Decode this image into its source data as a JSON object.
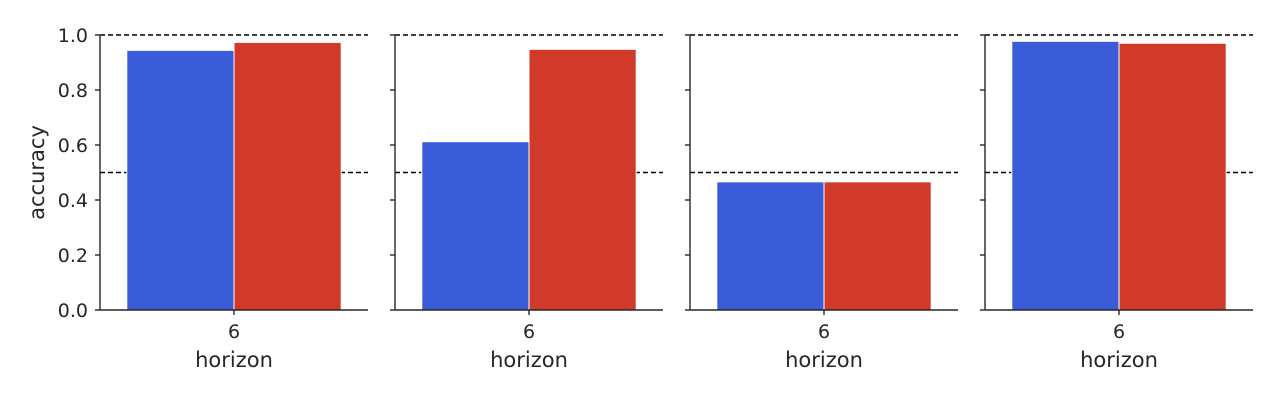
{
  "chart_data": [
    {
      "type": "bar",
      "categories": [
        "6"
      ],
      "series": [
        {
          "values": [
            0.944
          ],
          "color": "#3a5cd8"
        },
        {
          "values": [
            0.973
          ],
          "color": "#d13a29"
        }
      ],
      "xlabel": "horizon",
      "ylabel": "accuracy",
      "ylim": [
        0,
        1.0
      ],
      "yticks": [
        "0.0",
        "0.2",
        "0.4",
        "0.6",
        "0.8",
        "1.0"
      ],
      "reference_lines": [
        0.5,
        1.0
      ]
    },
    {
      "type": "bar",
      "categories": [
        "6"
      ],
      "series": [
        {
          "values": [
            0.612
          ],
          "color": "#3a5cd8"
        },
        {
          "values": [
            0.948
          ],
          "color": "#d13a29"
        }
      ],
      "xlabel": "horizon",
      "ylabel": "",
      "ylim": [
        0,
        1.0
      ],
      "reference_lines": [
        0.5,
        1.0
      ]
    },
    {
      "type": "bar",
      "categories": [
        "6"
      ],
      "series": [
        {
          "values": [
            0.466
          ],
          "color": "#3a5cd8"
        },
        {
          "values": [
            0.466
          ],
          "color": "#d13a29"
        }
      ],
      "xlabel": "horizon",
      "ylabel": "",
      "ylim": [
        0,
        1.0
      ],
      "reference_lines": [
        0.5,
        1.0
      ]
    },
    {
      "type": "bar",
      "categories": [
        "6"
      ],
      "series": [
        {
          "values": [
            0.977
          ],
          "color": "#3a5cd8"
        },
        {
          "values": [
            0.97
          ],
          "color": "#d13a29"
        }
      ],
      "xlabel": "horizon",
      "ylabel": "",
      "ylim": [
        0,
        1.0
      ],
      "reference_lines": [
        0.5,
        1.0
      ]
    }
  ]
}
